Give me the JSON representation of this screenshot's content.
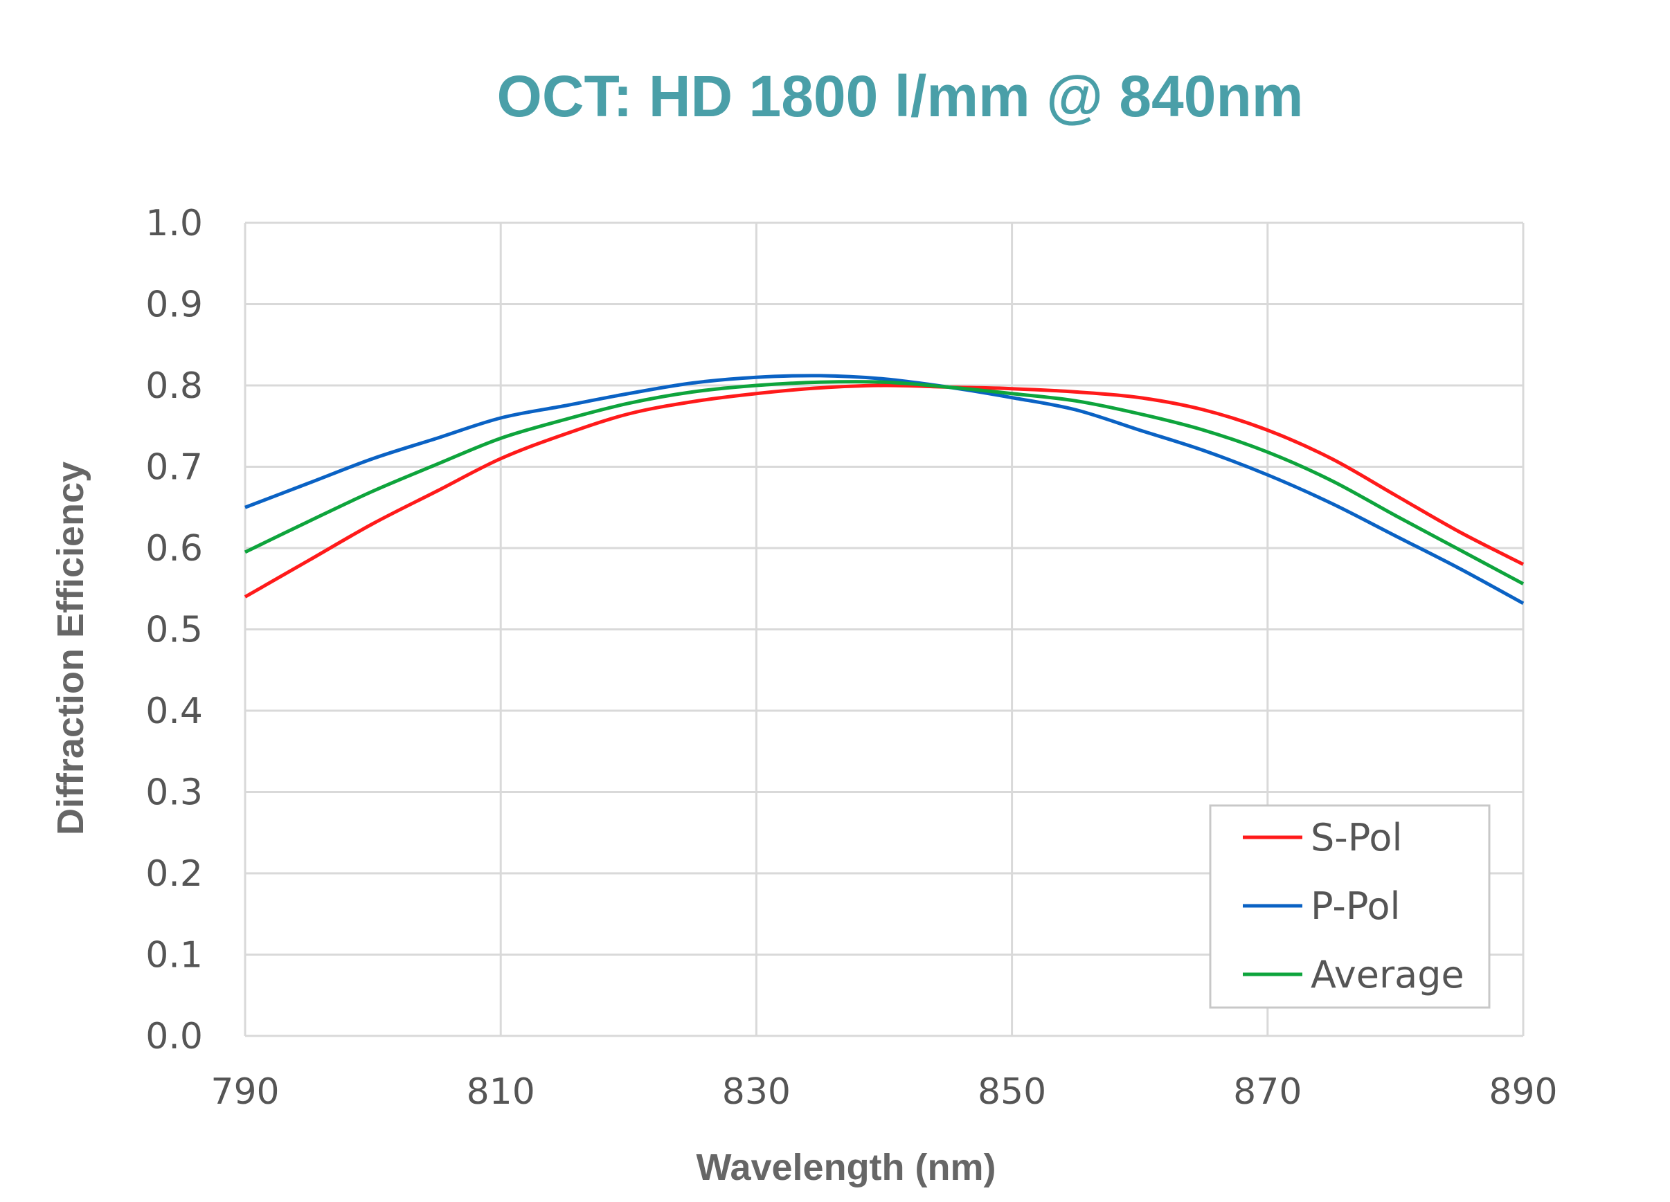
{
  "chart_data": {
    "type": "line",
    "title": "OCT: HD 1800 l/mm @ 840nm",
    "xlabel": "Wavelength (nm)",
    "ylabel": "Diffraction Efficiency",
    "xlim": [
      790,
      890
    ],
    "ylim": [
      0.0,
      1.0
    ],
    "xticks": [
      "790",
      "810",
      "830",
      "850",
      "870",
      "890"
    ],
    "yticks": [
      "0.0",
      "0.1",
      "0.2",
      "0.3",
      "0.4",
      "0.5",
      "0.6",
      "0.7",
      "0.8",
      "0.9",
      "1.0"
    ],
    "grid": true,
    "legend_position": "bottom-right",
    "x": [
      790,
      795,
      800,
      805,
      810,
      815,
      820,
      825,
      830,
      835,
      840,
      845,
      850,
      855,
      860,
      865,
      870,
      875,
      880,
      885,
      890
    ],
    "series": [
      {
        "name": "S-Pol",
        "color": "#ff1a1a",
        "values": [
          0.54,
          0.585,
          0.63,
          0.67,
          0.71,
          0.74,
          0.765,
          0.78,
          0.79,
          0.797,
          0.8,
          0.798,
          0.796,
          0.792,
          0.785,
          0.77,
          0.745,
          0.71,
          0.665,
          0.62,
          0.58
        ]
      },
      {
        "name": "P-Pol",
        "color": "#0a62c4",
        "values": [
          0.65,
          0.68,
          0.71,
          0.735,
          0.76,
          0.775,
          0.79,
          0.803,
          0.81,
          0.812,
          0.808,
          0.798,
          0.785,
          0.77,
          0.745,
          0.72,
          0.69,
          0.655,
          0.615,
          0.575,
          0.532
        ]
      },
      {
        "name": "Average",
        "color": "#0ea43c",
        "values": [
          0.595,
          0.633,
          0.67,
          0.703,
          0.735,
          0.758,
          0.778,
          0.792,
          0.8,
          0.804,
          0.804,
          0.798,
          0.79,
          0.781,
          0.765,
          0.745,
          0.718,
          0.683,
          0.64,
          0.598,
          0.556
        ]
      }
    ]
  }
}
